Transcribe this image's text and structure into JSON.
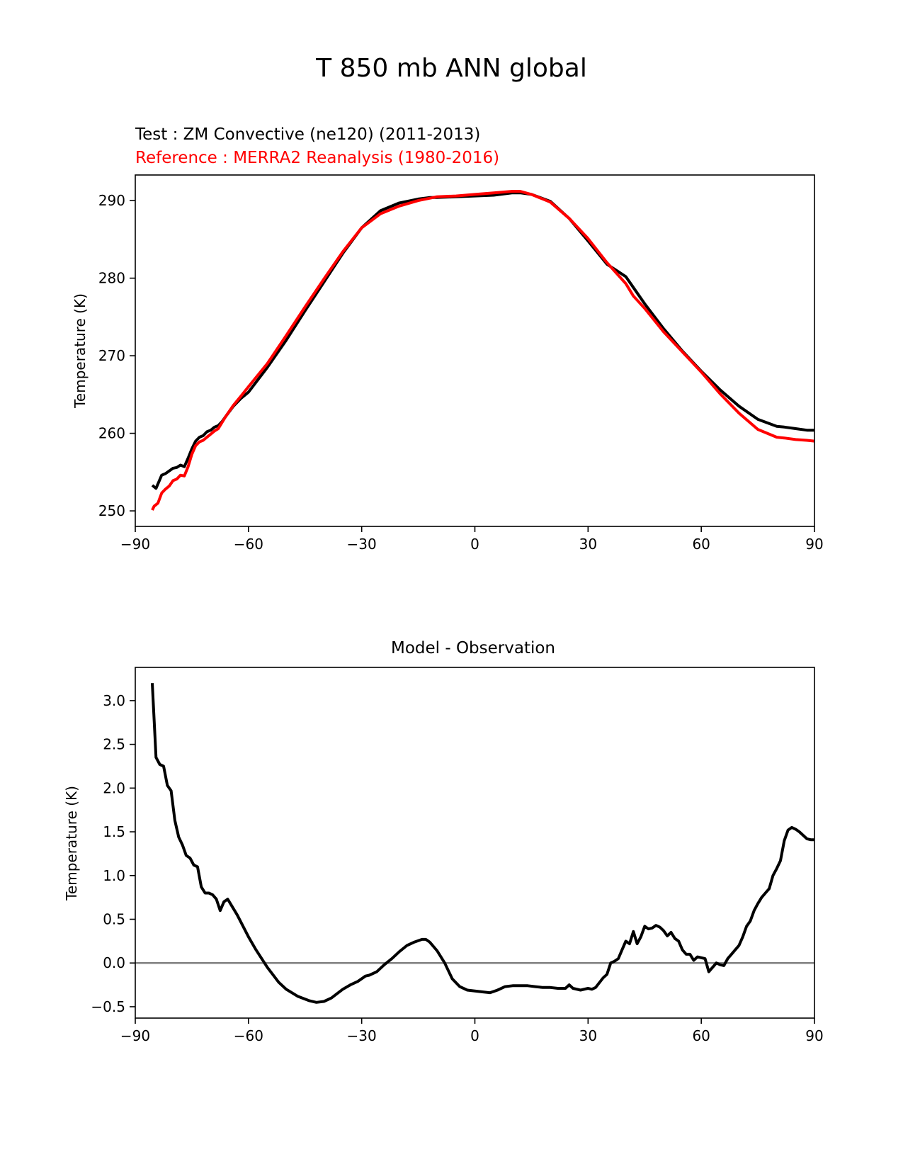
{
  "figure": {
    "suptitle": "T 850 mb ANN global"
  },
  "chart_data": [
    {
      "type": "line",
      "title_test": "Test : ZM Convective (ne120) (2011-2013)",
      "title_ref": "Reference : MERRA2 Reanalysis (1980-2016)",
      "xlabel": "",
      "ylabel": "Temperature (K)",
      "xlim": [
        -90,
        90
      ],
      "ylim": [
        248,
        293.3
      ],
      "xticks": [
        -90,
        -60,
        -30,
        0,
        30,
        60,
        90
      ],
      "xtick_labels": [
        "−90",
        "−60",
        "−30",
        "0",
        "30",
        "60",
        "90"
      ],
      "yticks": [
        250,
        260,
        270,
        280,
        290
      ],
      "ytick_labels": [
        "250",
        "260",
        "270",
        "280",
        "290"
      ],
      "series": [
        {
          "name": "Test : ZM Convective (ne120) (2011-2013)",
          "color": "#000000",
          "x": [
            -85.5,
            -84.5,
            -83,
            -82,
            -80,
            -79,
            -78,
            -77,
            -76,
            -75,
            -74,
            -73,
            -72,
            -71,
            -70,
            -69,
            -68,
            -67,
            -66,
            -64,
            -62,
            -60,
            -55,
            -50,
            -45,
            -40,
            -35,
            -30,
            -25,
            -20,
            -15,
            -12,
            -10,
            -5,
            0,
            5,
            10,
            12,
            15,
            20,
            25,
            30,
            35,
            40,
            42,
            45,
            50,
            55,
            60,
            65,
            70,
            75,
            80,
            82,
            85,
            88,
            90
          ],
          "y": [
            253.3,
            252.9,
            254.6,
            254.8,
            255.5,
            255.6,
            255.9,
            255.7,
            256.8,
            258.0,
            259.0,
            259.5,
            259.7,
            260.2,
            260.4,
            260.8,
            261.0,
            261.5,
            262.2,
            263.5,
            264.5,
            265.3,
            268.5,
            272.0,
            275.8,
            279.5,
            283.2,
            286.5,
            288.7,
            289.7,
            290.2,
            290.4,
            290.4,
            290.5,
            290.6,
            290.7,
            291.0,
            291.0,
            290.8,
            289.9,
            287.7,
            284.8,
            281.8,
            280.2,
            278.8,
            276.7,
            273.5,
            270.6,
            268.0,
            265.6,
            263.5,
            261.8,
            260.9,
            260.8,
            260.6,
            260.4,
            260.4
          ]
        },
        {
          "name": "Reference : MERRA2 Reanalysis (1980-2016)",
          "color": "#ff0000",
          "x": [
            -85.5,
            -85,
            -84,
            -83,
            -82,
            -81,
            -80,
            -79,
            -78,
            -77,
            -76,
            -75,
            -74,
            -73,
            -72,
            -71,
            -70,
            -69,
            -68,
            -66,
            -64,
            -62,
            -60,
            -55,
            -50,
            -45,
            -40,
            -35,
            -30,
            -25,
            -20,
            -15,
            -12,
            -10,
            -5,
            0,
            5,
            10,
            12,
            15,
            20,
            25,
            30,
            35,
            40,
            42,
            45,
            50,
            55,
            60,
            65,
            70,
            75,
            80,
            82,
            85,
            88,
            90
          ],
          "y": [
            250.1,
            250.6,
            251.0,
            252.3,
            252.8,
            253.2,
            253.9,
            254.1,
            254.6,
            254.5,
            255.7,
            257.3,
            258.4,
            258.9,
            259.1,
            259.5,
            259.9,
            260.3,
            260.6,
            262.2,
            263.6,
            264.8,
            266.0,
            269.0,
            272.6,
            276.3,
            279.9,
            283.4,
            286.5,
            288.3,
            289.3,
            290.0,
            290.3,
            290.5,
            290.6,
            290.8,
            291.0,
            291.2,
            291.2,
            290.8,
            289.8,
            287.7,
            285.1,
            282.0,
            279.3,
            277.7,
            276.1,
            273.1,
            270.5,
            267.9,
            265.1,
            262.6,
            260.5,
            259.5,
            259.4,
            259.2,
            259.1,
            259.0
          ]
        }
      ]
    },
    {
      "type": "line",
      "title": "Model - Observation",
      "xlabel": "",
      "ylabel": "Temperature (K)",
      "xlim": [
        -90,
        90
      ],
      "ylim": [
        -0.63,
        3.38
      ],
      "xticks": [
        -90,
        -60,
        -30,
        0,
        30,
        60,
        90
      ],
      "xtick_labels": [
        "−90",
        "−60",
        "−30",
        "0",
        "30",
        "60",
        "90"
      ],
      "yticks": [
        -0.5,
        0.0,
        0.5,
        1.0,
        1.5,
        2.0,
        2.5,
        3.0
      ],
      "ytick_labels": [
        "−0.5",
        "0.0",
        "0.5",
        "1.0",
        "1.5",
        "2.0",
        "2.5",
        "3.0"
      ],
      "zero_line": {
        "value": 0,
        "color": "#808080"
      },
      "series": [
        {
          "name": "Model - Observation",
          "color": "#000000",
          "x": [
            -85.5,
            -84.5,
            -83.5,
            -82.5,
            -81.5,
            -80.5,
            -79.5,
            -78.5,
            -77.5,
            -76.5,
            -75.5,
            -74.5,
            -73.5,
            -72.5,
            -71.5,
            -70.5,
            -69.5,
            -68.5,
            -67.5,
            -66.5,
            -65.5,
            -63,
            -60,
            -58,
            -55,
            -52,
            -50,
            -47,
            -44,
            -42,
            -40,
            -38,
            -35,
            -33,
            -31,
            -29,
            -28,
            -26,
            -24,
            -22,
            -20,
            -18,
            -16,
            -14,
            -13,
            -12,
            -10,
            -8,
            -6,
            -4,
            -2,
            0,
            2,
            4,
            6,
            8,
            10,
            12,
            14,
            16,
            18,
            20,
            22,
            24,
            25,
            26,
            28,
            30,
            31,
            32,
            34,
            35,
            36,
            37,
            38,
            39,
            40,
            41,
            42,
            43,
            44,
            45,
            46,
            47,
            48,
            49,
            50,
            51,
            52,
            53,
            54,
            55,
            56,
            57,
            58,
            59,
            60,
            61,
            62,
            63,
            64,
            65,
            66,
            67,
            68,
            69,
            70,
            71,
            72,
            73,
            74,
            75,
            76,
            77,
            78,
            79,
            80,
            81,
            82,
            83,
            84,
            85,
            86,
            87,
            88,
            89,
            90
          ],
          "y": [
            3.2,
            2.35,
            2.27,
            2.25,
            2.03,
            1.97,
            1.63,
            1.44,
            1.35,
            1.23,
            1.2,
            1.12,
            1.1,
            0.87,
            0.8,
            0.8,
            0.78,
            0.73,
            0.6,
            0.7,
            0.73,
            0.55,
            0.3,
            0.15,
            -0.05,
            -0.22,
            -0.3,
            -0.38,
            -0.43,
            -0.45,
            -0.44,
            -0.4,
            -0.3,
            -0.25,
            -0.21,
            -0.15,
            -0.14,
            -0.1,
            -0.02,
            0.05,
            0.13,
            0.2,
            0.24,
            0.27,
            0.27,
            0.24,
            0.14,
            0.0,
            -0.18,
            -0.27,
            -0.31,
            -0.32,
            -0.33,
            -0.34,
            -0.31,
            -0.27,
            -0.26,
            -0.26,
            -0.26,
            -0.27,
            -0.28,
            -0.28,
            -0.29,
            -0.29,
            -0.25,
            -0.29,
            -0.31,
            -0.29,
            -0.3,
            -0.28,
            -0.17,
            -0.13,
            0.0,
            0.02,
            0.05,
            0.15,
            0.25,
            0.22,
            0.36,
            0.22,
            0.3,
            0.42,
            0.39,
            0.4,
            0.43,
            0.41,
            0.37,
            0.31,
            0.35,
            0.28,
            0.25,
            0.15,
            0.1,
            0.1,
            0.03,
            0.07,
            0.06,
            0.05,
            -0.1,
            -0.05,
            0.0,
            -0.02,
            -0.03,
            0.05,
            0.1,
            0.15,
            0.2,
            0.3,
            0.42,
            0.48,
            0.6,
            0.68,
            0.75,
            0.8,
            0.85,
            1.0,
            1.08,
            1.17,
            1.4,
            1.52,
            1.55,
            1.53,
            1.5,
            1.46,
            1.42,
            1.41,
            1.41
          ]
        }
      ]
    }
  ]
}
